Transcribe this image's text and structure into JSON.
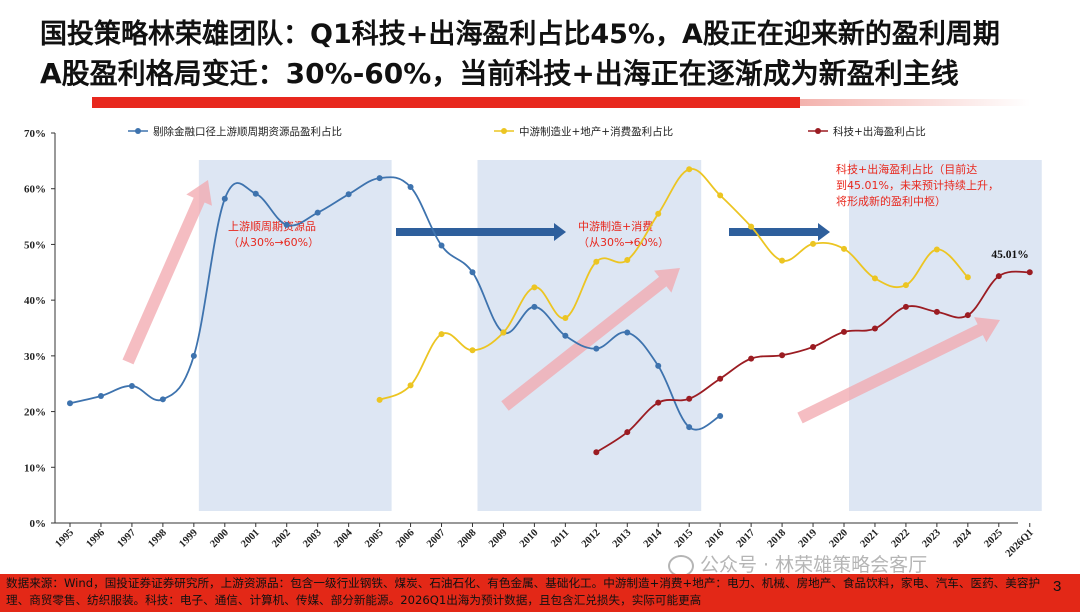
{
  "title_line1": "国投策略林荣雄团队：Q1科技+出海盈利占比45%，A股正在迎来新的盈利周期",
  "title_line2": "A股盈利格局变迁：30%-60%，当前科技+出海正在逐渐成为新盈利主线",
  "footer_text": "数据来源：Wind，国投证券证券研究所，上游资源品：包含一级行业钢铁、煤炭、石油石化、有色金属、基础化工。中游制造+消费+地产：电力、机械、房地产、食品饮料，家电、汽车、医药、美容护理、商贸零售、纺织服装。科技：电子、通信、计算机、传媒、部分新能源。2026Q1出海为预计数据，且包含汇兑损失，实际可能更高",
  "page_number": "3",
  "watermark": "公众号 · 林荣雄策略会客厅",
  "colors": {
    "upstream": "#3e73ae",
    "midstream": "#ecc522",
    "tech": "#9b1c22",
    "shade": "#dde6f3",
    "annotation_red": "#e8281e",
    "arrow_blue": "#2e5f9c",
    "arrow_pink": "#f2a7ad"
  },
  "chart_data": {
    "type": "line",
    "x": [
      "1995",
      "1996",
      "1997",
      "1998",
      "1999",
      "2000",
      "2001",
      "2002",
      "2003",
      "2004",
      "2005",
      "2006",
      "2007",
      "2008",
      "2009",
      "2010",
      "2011",
      "2012",
      "2013",
      "2014",
      "2015",
      "2016",
      "2017",
      "2018",
      "2019",
      "2020",
      "2021",
      "2022",
      "2023",
      "2024",
      "2025",
      "2026Q1"
    ],
    "ylim": [
      0,
      70
    ],
    "yticks": [
      0,
      10,
      20,
      30,
      40,
      50,
      60,
      70
    ],
    "ytick_labels": [
      "0%",
      "10%",
      "20%",
      "30%",
      "40%",
      "50%",
      "60%",
      "70%"
    ],
    "legend_position": "top",
    "grid": false,
    "series": [
      {
        "name": "剔除金融口径上游顺周期资源品盈利占比",
        "color_key": "upstream",
        "values": [
          21.5,
          22.8,
          24.6,
          22.2,
          30.0,
          58.2,
          59.1,
          53.5,
          55.7,
          59.0,
          61.9,
          60.3,
          49.8,
          45.0,
          34.2,
          38.8,
          33.6,
          31.3,
          34.2,
          28.2,
          17.2,
          19.2,
          null,
          null,
          null,
          null,
          null,
          null,
          null,
          null,
          null,
          null
        ]
      },
      {
        "name": "中游制造业+地产+消费盈利占比",
        "color_key": "midstream",
        "values": [
          null,
          null,
          null,
          null,
          null,
          null,
          null,
          null,
          null,
          null,
          22.1,
          24.7,
          33.9,
          31.0,
          34.2,
          42.3,
          36.8,
          46.9,
          47.2,
          55.5,
          63.5,
          58.8,
          53.2,
          47.1,
          50.1,
          49.2,
          43.9,
          42.7,
          49.1,
          44.1,
          null,
          null
        ]
      },
      {
        "name": "科技+出海盈利占比",
        "color_key": "tech",
        "values": [
          null,
          null,
          null,
          null,
          null,
          null,
          null,
          null,
          null,
          null,
          null,
          null,
          null,
          null,
          null,
          null,
          null,
          12.7,
          16.3,
          21.6,
          22.3,
          25.9,
          29.5,
          30.1,
          31.6,
          34.3,
          34.9,
          38.8,
          37.9,
          37.3,
          44.3,
          45.01
        ]
      }
    ],
    "shaded_ranges": [
      {
        "from": "1999",
        "to": "2005"
      },
      {
        "from": "2008",
        "to": "2015"
      },
      {
        "from": "2020",
        "to": "2026Q1"
      }
    ],
    "annotations": [
      {
        "text_lines": [
          "上游顺周期资源品",
          "（从30%→60%）"
        ],
        "anchor_x": "2002",
        "anchor_y": 52.6
      },
      {
        "text_lines": [
          "中游制造+消费",
          "（从30%→60%）"
        ],
        "anchor_x": "2013",
        "anchor_y": 52.6
      },
      {
        "text_lines": [
          "科技+出海盈利占比（目前达",
          "到45.01%，未来预计持续上升，",
          "将形成新的盈利中枢）"
        ],
        "anchor_x": "2020",
        "anchor_y": 63.0
      },
      {
        "text_lines": [
          "45.01%"
        ],
        "anchor_x": "2026Q1",
        "anchor_y": 47.7
      }
    ]
  }
}
